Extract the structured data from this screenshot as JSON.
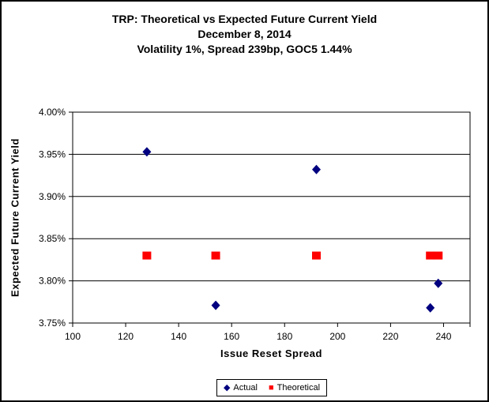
{
  "chart_data": {
    "type": "scatter",
    "title_lines": [
      "TRP: Theoretical vs Expected Future Current Yield",
      "December 8, 2014",
      "Volatility 1%, Spread 239bp, GOC5 1.44%"
    ],
    "xlabel": "Issue Reset Spread",
    "ylabel": "Expected Future Current Yield",
    "xlim": [
      100,
      250
    ],
    "ylim": [
      3.75,
      4.0
    ],
    "x_ticks": [
      100,
      120,
      140,
      160,
      180,
      200,
      220,
      240
    ],
    "x_tick_labels": [
      "100",
      "120",
      "140",
      "160",
      "180",
      "200",
      "220",
      "240"
    ],
    "y_ticks": [
      4.0,
      3.95,
      3.9,
      3.85,
      3.8,
      3.75
    ],
    "y_tick_labels": [
      "4.00%",
      "3.95%",
      "3.90%",
      "3.85%",
      "3.80%",
      "3.75%"
    ],
    "grid": true,
    "legend_position": "bottom-center",
    "axis_color": "#000000",
    "series": [
      {
        "name": "Actual",
        "marker": "diamond",
        "color": "#000080",
        "points": [
          [
            128,
            3.953
          ],
          [
            154,
            3.771
          ],
          [
            192,
            3.932
          ],
          [
            235,
            3.768
          ],
          [
            238,
            3.797
          ]
        ]
      },
      {
        "name": "Theoretical",
        "marker": "square",
        "color": "#FF0000",
        "points": [
          [
            128,
            3.83
          ],
          [
            154,
            3.83
          ],
          [
            192,
            3.83
          ],
          [
            235,
            3.83
          ],
          [
            238,
            3.83
          ]
        ]
      }
    ]
  }
}
